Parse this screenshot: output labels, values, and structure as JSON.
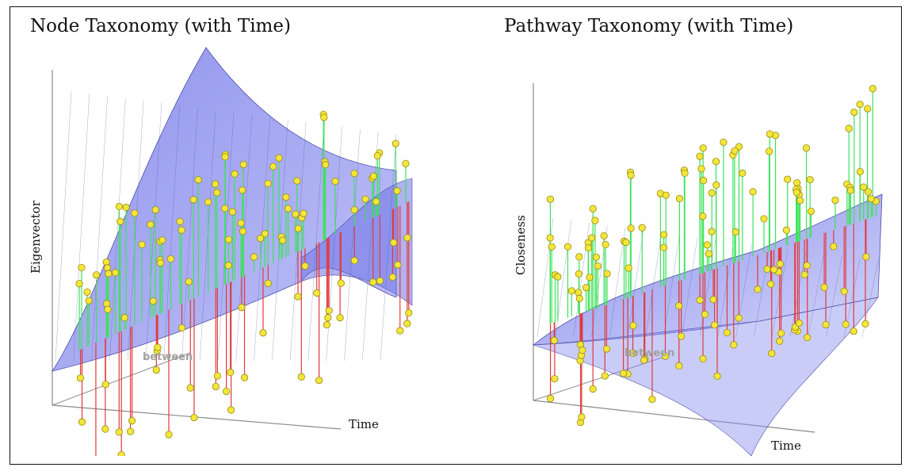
{
  "chart_data": [
    {
      "type": "scatter",
      "title": "Node Taxonomy (with Time)",
      "xlabel": "Time",
      "ylabel": "Eigenvector",
      "zlabel": "between",
      "surface": "fitted regression surface",
      "colors": {
        "surface": "#6f73e6",
        "surface_grid": "#4a4ea6",
        "point": "#f2e63a",
        "stem_above": "#3ce35a",
        "stem_below": "#e03a3a",
        "axis": "#8a8a8a"
      }
    },
    {
      "type": "scatter",
      "title": "Pathway Taxonomy (with Time)",
      "xlabel": "Time",
      "ylabel": "Closeness",
      "zlabel": "between",
      "surface": "fitted regression surface",
      "colors": {
        "surface": "#6f73e6",
        "surface_grid": "#4a4ea6",
        "point": "#f2e63a",
        "stem_above": "#3ce35a",
        "stem_below": "#e03a3a",
        "axis": "#8a8a8a"
      }
    }
  ]
}
